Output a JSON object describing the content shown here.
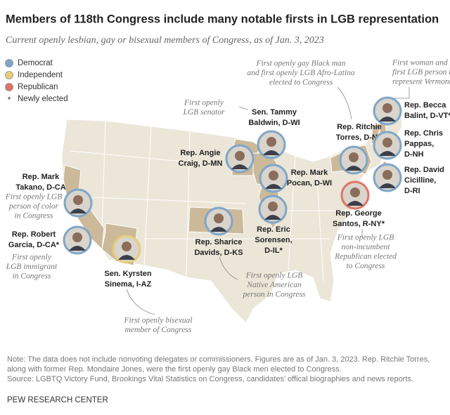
{
  "header": {
    "title": "Members of 118th Congress include many notable firsts in LGB representation",
    "subtitle": "Current openly lesbian, gay or bisexual members of Congress, as of Jan. 3, 2023"
  },
  "legend": [
    {
      "label": "Democrat",
      "color": "#7fa6c8"
    },
    {
      "label": "Independent",
      "color": "#e6cd7a"
    },
    {
      "label": "Republican",
      "color": "#df7466"
    },
    {
      "marker": "*",
      "label": "Newly elected"
    }
  ],
  "members": [
    {
      "name": [
        "Rep. Mark",
        "Takano, D-CA"
      ],
      "note": [
        "First openly LGB",
        "person of color",
        "in Congress"
      ],
      "color": "#7fa6c8"
    },
    {
      "name": [
        "Rep. Robert",
        "Garcia, D-CA*"
      ],
      "note": [
        "First openly",
        "LGB immigrant",
        "in Congress"
      ],
      "color": "#7fa6c8"
    },
    {
      "name": [
        "Sen. Kyrsten",
        "Sinema, I-AZ"
      ],
      "note": [
        "First openly bisexual",
        "member of Congress"
      ],
      "color": "#e6cd7a"
    },
    {
      "name": [
        "Sen. Tammy",
        "Baldwin, D-WI"
      ],
      "note": [
        "First openly",
        "LGB senator"
      ],
      "color": "#7fa6c8"
    },
    {
      "name": [
        "Rep. Angie",
        "Craig, D-MN"
      ],
      "color": "#7fa6c8"
    },
    {
      "name": [
        "Rep. Mark",
        "Pocan, D-WI"
      ],
      "color": "#7fa6c8"
    },
    {
      "name": [
        "Rep. Sharice",
        "Davids, D-KS"
      ],
      "note": [
        "First openly LGB",
        "Native American",
        "person in Congress"
      ],
      "color": "#7fa6c8"
    },
    {
      "name": [
        "Rep. Eric",
        "Sorensen,",
        "D-IL*"
      ],
      "color": "#7fa6c8"
    },
    {
      "name": [
        "Rep. Ritchie",
        "Torres, D-NY"
      ],
      "note": [
        "First openly gay Black man",
        "and first openly LGB Afro-Latino",
        "elected to Congress"
      ],
      "color": "#7fa6c8"
    },
    {
      "name": [
        "Rep. George",
        "Santos, R-NY*"
      ],
      "note": [
        "First openly LGB",
        "non-incumbent",
        "Republican elected",
        "to Congress"
      ],
      "color": "#df7466"
    },
    {
      "name": [
        "Rep. Becca",
        "Balint, D-VT*"
      ],
      "note": [
        "First woman and",
        "first LGB person to",
        "represent Vermont"
      ],
      "color": "#7fa6c8"
    },
    {
      "name": [
        "Rep. Chris",
        "Pappas,",
        "D-NH"
      ],
      "color": "#7fa6c8"
    },
    {
      "name": [
        "Rep. David",
        "Cicilline,",
        "D-RI"
      ],
      "color": "#7fa6c8"
    }
  ],
  "footer": {
    "note": "Note: The data does not include nonvoting delegates or commissioners. Figures are as of Jan. 3, 2023. Rep. Ritchie Torres, along with former Rep. Mondaire Jones, were the first openly gay Black men elected to Congress.",
    "source": "Source: LGBTQ Victory Fund, Brookings Vital Statistics on Congress, candidates’ offical biographies and news reports.",
    "brand": "PEW RESEARCH CENTER"
  }
}
